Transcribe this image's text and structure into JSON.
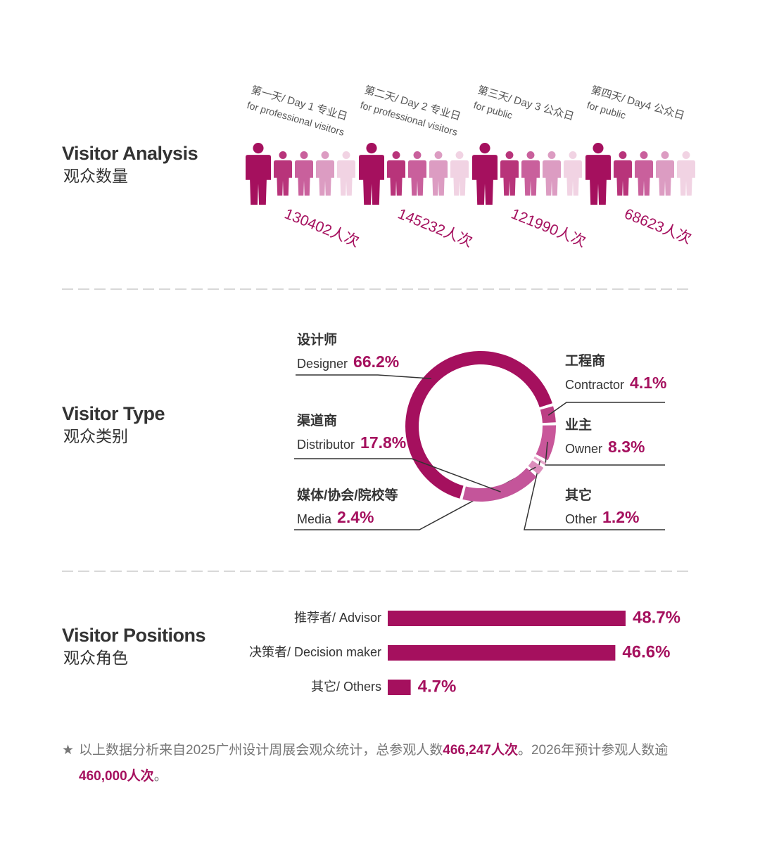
{
  "chart_data": [
    {
      "type": "pictogram",
      "title": "Visitor Analysis",
      "subtitle": "观众数量",
      "categories": [
        "第一天/ Day 1 专业日",
        "第二天/ Day 2 专业日",
        "第三天/ Day 3 公众日",
        "第四天/ Day4 公众日"
      ],
      "category_notes": [
        "for professional visitors",
        "for professional visitors",
        "for public",
        "for public"
      ],
      "values": [
        130402,
        145232,
        121990,
        68623
      ],
      "value_labels": [
        "130402人次",
        "145232人次",
        "121990人次",
        "68623人次"
      ],
      "colors": [
        "#a5105e",
        "#b8347a",
        "#c9609c",
        "#dc9cc2",
        "#f1d3e3"
      ]
    },
    {
      "type": "donut",
      "title": "Visitor Type",
      "subtitle": "观众类别",
      "categories": [
        "Designer",
        "Contractor",
        "Owner",
        "Other",
        "Media",
        "Distributor"
      ],
      "categories_cn": [
        "设计师",
        "工程商",
        "业主",
        "其它",
        "媒体/协会/院校等",
        "渠道商"
      ],
      "values": [
        66.2,
        4.1,
        8.3,
        1.2,
        2.4,
        17.8
      ],
      "value_labels": [
        "66.2%",
        "4.1%",
        "8.3%",
        "1.2%",
        "2.4%",
        "17.8%"
      ],
      "colors": [
        "#a5105e",
        "#bc3f84",
        "#c9579a",
        "#e7a9cc",
        "#dc8dbb",
        "#c4559a"
      ]
    },
    {
      "type": "hbar",
      "title": "Visitor Positions",
      "subtitle": "观众角色",
      "categories": [
        "推荐者/ Advisor",
        "决策者/ Decision maker",
        "其它/ Others"
      ],
      "values": [
        48.7,
        46.6,
        4.7
      ],
      "value_labels": [
        "48.7%",
        "46.6%",
        "4.7%"
      ],
      "color": "#a5105e"
    }
  ],
  "footnote": [
    "以上数据分析来自2025广州设计周展会观众统计，总参观人数",
    "466,247人次",
    "。2026年预计参观人数逾",
    "460,000人次",
    "。"
  ]
}
